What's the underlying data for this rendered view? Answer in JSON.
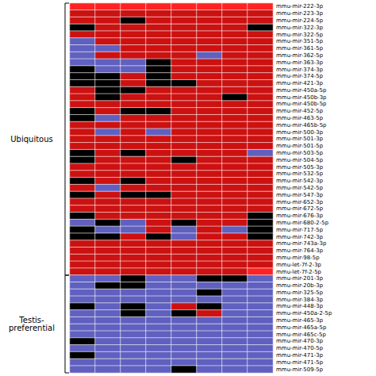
{
  "chart_data": {
    "type": "heatmap",
    "tick_labels": "y",
    "x": [
      null,
      null,
      null,
      null,
      null,
      null,
      null,
      null
    ],
    "categories": [
      "mmu-mir-222-3p",
      "mmu-mir-223-3p",
      "mmu-mir-224-5p",
      "mmu-mir-322-3p",
      "mmu-mir-322-5p",
      "mmu-mir-351-5p",
      "mmu-mir-361-5p",
      "mmu-mir-362-5p",
      "mmu-mir-363-3p",
      "mmu-mir-374-3p",
      "mmu-mir-374-5p",
      "mmu-mir-421-3p",
      "mmu-mir-450a-5p",
      "mmu-mir-450b-3p",
      "mmu-mir-450b-5p",
      "mmu-mir-452-5p",
      "mmu-mir-463-5p",
      "mmu-mir-465b-5p",
      "mmu-mir-500-3p",
      "mmu-mir-501-3p",
      "mmu-mir-501-5p",
      "mmu-mir-503-5p",
      "mmu-mir-504-5p",
      "mmu-mir-505-3p",
      "mmu-mir-532-5p",
      "mmu-mir-542-3p",
      "mmu-mir-542-5p",
      "mmu-mir-547-3p",
      "mmu-mir-652-3p",
      "mmu-mir-672-5p",
      "mmu-mir-676-3p",
      "mmu-mir-680-2-5p",
      "mmu-mir-717-5p",
      "mmu-mir-742-3p",
      "mmu-mir-743a-3p",
      "mmu-mir-764-3p",
      "mmu-mir-98-5p",
      "mmu-let-7f-2-3p",
      "mmu-let-7f-2-5p",
      "mmu-mir-201-3p",
      "mmu-mir-20b-3p",
      "mmu-mir-325-5p",
      "mmu-mir-384-3p",
      "mmu-mir-448-3p",
      "mmu-mir-450a-2-5p",
      "mmu-mir-465-3p",
      "mmu-mir-465a-5p",
      "mmu-mir-465c-5p",
      "mmu-mir-470-3p",
      "mmu-mir-470-5p",
      "mmu-mir-471-3p",
      "mmu-mir-471-5p",
      "mmu-mir-509-5p"
    ],
    "values": [
      [
        3,
        3,
        3,
        3,
        3,
        3,
        3,
        3
      ],
      [
        2,
        2,
        2,
        2,
        2,
        2,
        2,
        2
      ],
      [
        2,
        2,
        0,
        2,
        2,
        2,
        2,
        2
      ],
      [
        0,
        2,
        2,
        2,
        2,
        2,
        2,
        0
      ],
      [
        2,
        2,
        2,
        2,
        2,
        2,
        2,
        2
      ],
      [
        1,
        2,
        2,
        2,
        2,
        2,
        2,
        2
      ],
      [
        1,
        1,
        2,
        2,
        2,
        2,
        2,
        2
      ],
      [
        1,
        2,
        2,
        2,
        2,
        1,
        2,
        2
      ],
      [
        1,
        1,
        1,
        0,
        2,
        2,
        2,
        2
      ],
      [
        0,
        1,
        1,
        0,
        2,
        2,
        2,
        2
      ],
      [
        0,
        0,
        2,
        0,
        2,
        2,
        2,
        2
      ],
      [
        0,
        0,
        2,
        0,
        0,
        2,
        2,
        2
      ],
      [
        2,
        0,
        0,
        2,
        2,
        2,
        2,
        2
      ],
      [
        2,
        0,
        2,
        2,
        2,
        2,
        0,
        2
      ],
      [
        2,
        2,
        2,
        2,
        2,
        2,
        2,
        2
      ],
      [
        0,
        2,
        0,
        0,
        2,
        2,
        2,
        2
      ],
      [
        0,
        1,
        2,
        2,
        2,
        2,
        2,
        2
      ],
      [
        2,
        2,
        2,
        2,
        2,
        2,
        2,
        2
      ],
      [
        2,
        1,
        2,
        1,
        2,
        2,
        2,
        2
      ],
      [
        2,
        2,
        2,
        2,
        2,
        2,
        2,
        2
      ],
      [
        2,
        2,
        2,
        2,
        2,
        2,
        2,
        2
      ],
      [
        0,
        2,
        0,
        2,
        2,
        2,
        2,
        1
      ],
      [
        0,
        2,
        2,
        2,
        0,
        2,
        2,
        2
      ],
      [
        2,
        2,
        2,
        2,
        2,
        2,
        2,
        2
      ],
      [
        2,
        2,
        2,
        2,
        2,
        2,
        2,
        2
      ],
      [
        0,
        2,
        0,
        2,
        2,
        2,
        2,
        2
      ],
      [
        2,
        1,
        2,
        2,
        2,
        2,
        2,
        2
      ],
      [
        0,
        2,
        0,
        0,
        2,
        2,
        2,
        2
      ],
      [
        2,
        2,
        2,
        2,
        2,
        2,
        2,
        2
      ],
      [
        2,
        2,
        2,
        2,
        2,
        2,
        2,
        2
      ],
      [
        0,
        2,
        2,
        2,
        2,
        2,
        2,
        0
      ],
      [
        1,
        0,
        1,
        2,
        0,
        2,
        2,
        0
      ],
      [
        0,
        1,
        1,
        2,
        1,
        2,
        1,
        0
      ],
      [
        0,
        0,
        2,
        0,
        1,
        2,
        2,
        0
      ],
      [
        2,
        2,
        2,
        2,
        2,
        2,
        2,
        2
      ],
      [
        2,
        2,
        2,
        2,
        2,
        2,
        2,
        2
      ],
      [
        2,
        2,
        2,
        2,
        2,
        2,
        2,
        2
      ],
      [
        2,
        2,
        2,
        2,
        2,
        2,
        2,
        2
      ],
      [
        2,
        2,
        2,
        2,
        2,
        2,
        2,
        3
      ],
      [
        1,
        1,
        0,
        1,
        1,
        0,
        0,
        1
      ],
      [
        1,
        0,
        0,
        1,
        1,
        1,
        1,
        1
      ],
      [
        1,
        1,
        1,
        1,
        1,
        0,
        1,
        1
      ],
      [
        1,
        1,
        1,
        1,
        1,
        1,
        1,
        1
      ],
      [
        0,
        1,
        0,
        1,
        2,
        0,
        1,
        1
      ],
      [
        1,
        1,
        0,
        1,
        0,
        2,
        1,
        1
      ],
      [
        1,
        1,
        1,
        1,
        1,
        1,
        1,
        1
      ],
      [
        1,
        1,
        1,
        1,
        1,
        1,
        1,
        1
      ],
      [
        1,
        1,
        1,
        1,
        1,
        1,
        1,
        1
      ],
      [
        0,
        1,
        1,
        1,
        1,
        1,
        1,
        1
      ],
      [
        1,
        1,
        1,
        1,
        1,
        1,
        1,
        1
      ],
      [
        0,
        1,
        1,
        1,
        1,
        1,
        1,
        1
      ],
      [
        1,
        1,
        1,
        1,
        1,
        1,
        1,
        1
      ],
      [
        1,
        1,
        1,
        1,
        0,
        1,
        1,
        1
      ]
    ],
    "colors": [
      "#000000",
      "#6060c0",
      "#cc1111",
      "#ff2222"
    ],
    "groups": [
      {
        "label": "Ubiquitous",
        "count": 39
      },
      {
        "label": "Testis-\npreferential",
        "count": 14
      }
    ]
  }
}
